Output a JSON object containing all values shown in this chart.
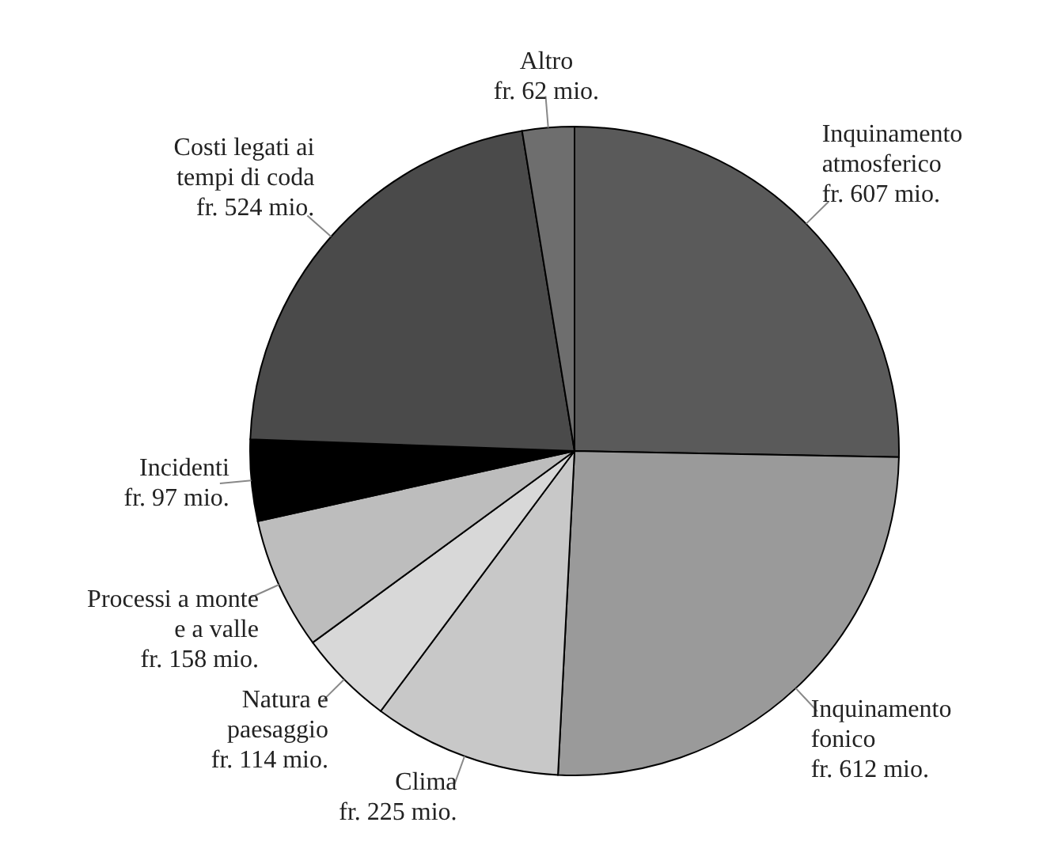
{
  "chart_data": {
    "type": "pie",
    "categories": [
      "Inquinamento atmosferico",
      "Inquinamento fonico",
      "Clima",
      "Natura e paesaggio",
      "Processi a monte e a valle",
      "Incidenti",
      "Costi legati ai tempi di coda",
      "Altro"
    ],
    "values": [
      607,
      612,
      225,
      114,
      158,
      97,
      524,
      62
    ],
    "value_labels": [
      "fr. 607 mio.",
      "fr. 612 mio.",
      "fr. 225 mio.",
      "fr. 114 mio.",
      "fr. 158 mio.",
      "fr. 97 mio.",
      "fr. 524 mio.",
      "fr. 62 mio."
    ],
    "colors": [
      "#5a5a5a",
      "#9a9a9a",
      "#c8c8c8",
      "#d8d8d8",
      "#bdbdbd",
      "#000000",
      "#4a4a4a",
      "#6e6e6e"
    ]
  }
}
